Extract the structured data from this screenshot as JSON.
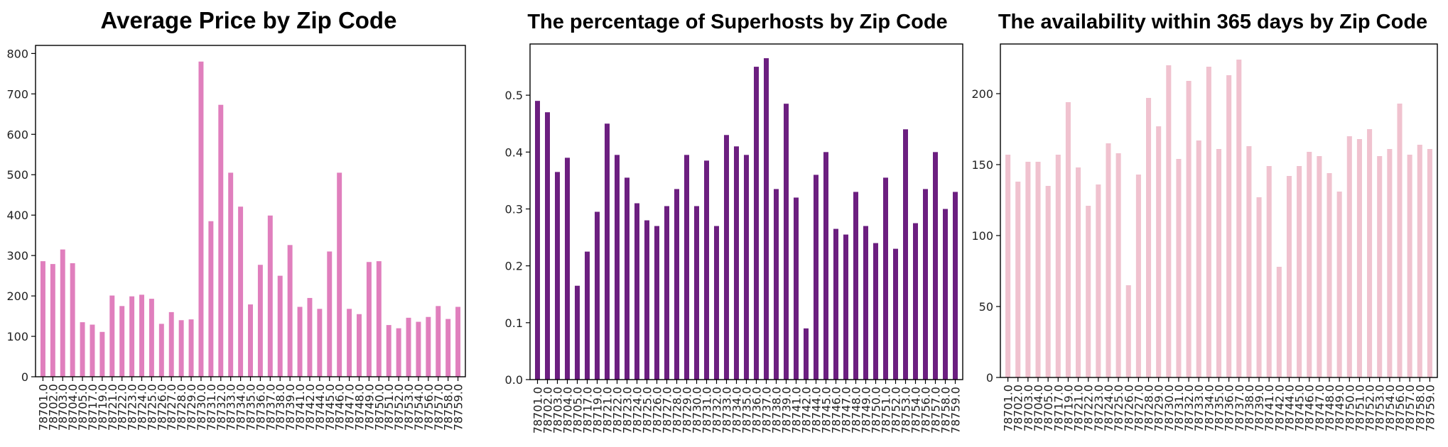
{
  "chart_data": [
    {
      "type": "bar",
      "title": "Average Price by Zip Code",
      "xlabel": "",
      "ylabel": "",
      "ylim": [
        0,
        820
      ],
      "yticks": [
        0,
        100,
        200,
        300,
        400,
        500,
        600,
        700,
        800
      ],
      "color": "#e07fbd",
      "grid": false,
      "categories": [
        "78701.0",
        "78702.0",
        "78703.0",
        "78704.0",
        "78705.0",
        "78717.0",
        "78719.0",
        "78721.0",
        "78722.0",
        "78723.0",
        "78724.0",
        "78725.0",
        "78726.0",
        "78727.0",
        "78728.0",
        "78729.0",
        "78730.0",
        "78731.0",
        "78732.0",
        "78733.0",
        "78734.0",
        "78735.0",
        "78736.0",
        "78737.0",
        "78738.0",
        "78739.0",
        "78741.0",
        "78742.0",
        "78744.0",
        "78745.0",
        "78746.0",
        "78747.0",
        "78748.0",
        "78749.0",
        "78750.0",
        "78751.0",
        "78752.0",
        "78753.0",
        "78754.0",
        "78756.0",
        "78757.0",
        "78758.0",
        "78759.0"
      ],
      "values": [
        286,
        279,
        315,
        281,
        135,
        129,
        111,
        201,
        175,
        199,
        203,
        193,
        131,
        160,
        140,
        142,
        780,
        385,
        673,
        505,
        421,
        179,
        277,
        399,
        250,
        326,
        173,
        195,
        168,
        310,
        505,
        168,
        155,
        284,
        286,
        128,
        120,
        146,
        136,
        148,
        175,
        143,
        173
      ]
    },
    {
      "type": "bar",
      "title": "The percentage of Superhosts by Zip Code",
      "xlabel": "",
      "ylabel": "",
      "ylim": [
        0,
        0.59
      ],
      "yticks": [
        0.0,
        0.1,
        0.2,
        0.3,
        0.4,
        0.5
      ],
      "color": "#6c1f80",
      "grid": false,
      "categories": [
        "78701.0",
        "78702.0",
        "78703.0",
        "78704.0",
        "78705.0",
        "78717.0",
        "78719.0",
        "78721.0",
        "78722.0",
        "78723.0",
        "78724.0",
        "78725.0",
        "78726.0",
        "78727.0",
        "78728.0",
        "78729.0",
        "78730.0",
        "78731.0",
        "78732.0",
        "78733.0",
        "78734.0",
        "78735.0",
        "78736.0",
        "78737.0",
        "78738.0",
        "78739.0",
        "78741.0",
        "78742.0",
        "78744.0",
        "78745.0",
        "78746.0",
        "78747.0",
        "78748.0",
        "78749.0",
        "78750.0",
        "78751.0",
        "78752.0",
        "78753.0",
        "78754.0",
        "78756.0",
        "78757.0",
        "78758.0",
        "78759.0"
      ],
      "values": [
        0.49,
        0.47,
        0.365,
        0.39,
        0.165,
        0.225,
        0.295,
        0.45,
        0.395,
        0.355,
        0.31,
        0.28,
        0.27,
        0.305,
        0.335,
        0.395,
        0.305,
        0.385,
        0.27,
        0.43,
        0.41,
        0.395,
        0.55,
        0.565,
        0.335,
        0.485,
        0.32,
        0.09,
        0.36,
        0.4,
        0.265,
        0.255,
        0.33,
        0.27,
        0.24,
        0.355,
        0.23,
        0.44,
        0.275,
        0.335,
        0.4,
        0.3,
        0.33
      ]
    },
    {
      "type": "bar",
      "title": "The availability within 365 days by Zip Code",
      "xlabel": "",
      "ylabel": "",
      "ylim": [
        0,
        235
      ],
      "yticks": [
        0,
        50,
        100,
        150,
        200
      ],
      "color": "#f0c2cf",
      "grid": false,
      "categories": [
        "78701.0",
        "78702.0",
        "78703.0",
        "78704.0",
        "78705.0",
        "78717.0",
        "78719.0",
        "78721.0",
        "78722.0",
        "78723.0",
        "78724.0",
        "78725.0",
        "78726.0",
        "78727.0",
        "78728.0",
        "78729.0",
        "78730.0",
        "78731.0",
        "78732.0",
        "78733.0",
        "78734.0",
        "78735.0",
        "78736.0",
        "78737.0",
        "78738.0",
        "78739.0",
        "78741.0",
        "78742.0",
        "78744.0",
        "78745.0",
        "78746.0",
        "78747.0",
        "78748.0",
        "78749.0",
        "78750.0",
        "78751.0",
        "78752.0",
        "78753.0",
        "78754.0",
        "78756.0",
        "78757.0",
        "78758.0",
        "78759.0"
      ],
      "values": [
        157,
        138,
        152,
        152,
        135,
        157,
        194,
        148,
        121,
        136,
        165,
        158,
        65,
        143,
        197,
        177,
        220,
        154,
        209,
        167,
        219,
        161,
        213,
        224,
        163,
        127,
        149,
        78,
        142,
        149,
        159,
        156,
        144,
        131,
        170,
        168,
        175,
        156,
        161,
        193,
        157,
        164,
        161
      ]
    }
  ]
}
